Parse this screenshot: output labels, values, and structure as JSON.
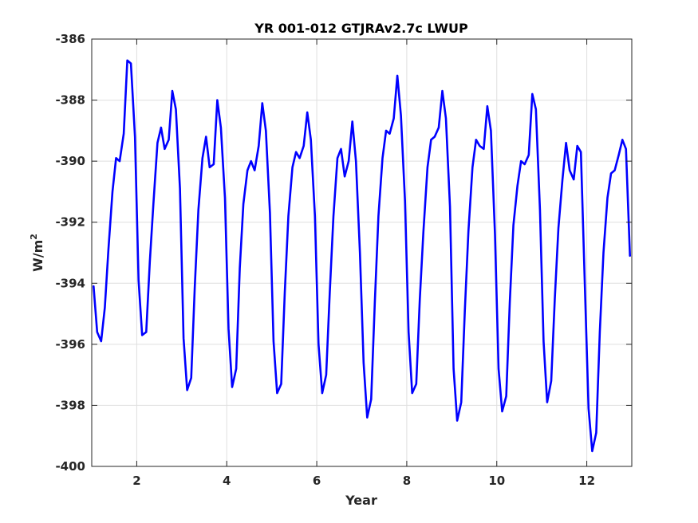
{
  "chart_data": {
    "type": "line",
    "title": "YR 001-012 GTJRAv2.7c LWUP",
    "xlabel": "Year",
    "ylabel": "W/m",
    "ylabel_superscript": "2",
    "xlim": [
      1,
      13
    ],
    "ylim": [
      -400,
      -386
    ],
    "xticks": [
      2,
      4,
      6,
      8,
      10,
      12
    ],
    "xtick_labels": [
      "2",
      "4",
      "6",
      "8",
      "10",
      "12"
    ],
    "yticks": [
      -400,
      -398,
      -396,
      -394,
      -392,
      -390,
      -388,
      -386
    ],
    "ytick_labels": [
      "-400",
      "-398",
      "-396",
      "-394",
      "-392",
      "-390",
      "-388",
      "-386"
    ],
    "grid": true,
    "series": [
      {
        "color": "#0000ff",
        "x": [
          1.04,
          1.12,
          1.21,
          1.29,
          1.37,
          1.46,
          1.54,
          1.62,
          1.71,
          1.79,
          1.87,
          1.96,
          2.04,
          2.12,
          2.21,
          2.29,
          2.37,
          2.46,
          2.54,
          2.62,
          2.71,
          2.79,
          2.87,
          2.96,
          3.04,
          3.12,
          3.21,
          3.29,
          3.37,
          3.46,
          3.54,
          3.62,
          3.71,
          3.79,
          3.87,
          3.96,
          4.04,
          4.12,
          4.21,
          4.29,
          4.37,
          4.46,
          4.54,
          4.62,
          4.71,
          4.79,
          4.87,
          4.96,
          5.04,
          5.12,
          5.21,
          5.29,
          5.37,
          5.46,
          5.54,
          5.62,
          5.71,
          5.79,
          5.87,
          5.96,
          6.04,
          6.12,
          6.21,
          6.29,
          6.37,
          6.46,
          6.54,
          6.62,
          6.71,
          6.79,
          6.87,
          6.96,
          7.04,
          7.12,
          7.21,
          7.29,
          7.37,
          7.46,
          7.54,
          7.62,
          7.71,
          7.79,
          7.87,
          7.96,
          8.04,
          8.12,
          8.21,
          8.29,
          8.37,
          8.46,
          8.54,
          8.62,
          8.71,
          8.79,
          8.87,
          8.96,
          9.04,
          9.12,
          9.21,
          9.29,
          9.37,
          9.46,
          9.54,
          9.62,
          9.71,
          9.79,
          9.87,
          9.96,
          10.04,
          10.12,
          10.21,
          10.29,
          10.37,
          10.46,
          10.54,
          10.62,
          10.71,
          10.79,
          10.87,
          10.96,
          11.04,
          11.12,
          11.21,
          11.29,
          11.37,
          11.46,
          11.54,
          11.62,
          11.71,
          11.79,
          11.87,
          11.96,
          12.04,
          12.12,
          12.21,
          12.29,
          12.37,
          12.46,
          12.54,
          12.62,
          12.71,
          12.79,
          12.87,
          12.96
        ],
        "y": [
          -394.1,
          -395.6,
          -395.9,
          -394.8,
          -392.9,
          -391.0,
          -389.9,
          -390.0,
          -389.1,
          -386.7,
          -386.8,
          -389.2,
          -393.9,
          -395.7,
          -395.6,
          -393.3,
          -391.4,
          -389.4,
          -388.9,
          -389.6,
          -389.3,
          -387.7,
          -388.3,
          -390.9,
          -395.8,
          -397.5,
          -397.1,
          -394.1,
          -391.6,
          -389.9,
          -389.2,
          -390.2,
          -390.1,
          -388.0,
          -388.9,
          -391.2,
          -395.5,
          -397.4,
          -396.8,
          -393.5,
          -391.4,
          -390.3,
          -390.0,
          -390.3,
          -389.5,
          -388.1,
          -389.0,
          -391.7,
          -395.9,
          -397.6,
          -397.3,
          -394.3,
          -391.8,
          -390.2,
          -389.7,
          -389.9,
          -389.5,
          -388.4,
          -389.3,
          -391.8,
          -396.0,
          -397.6,
          -397.0,
          -394.3,
          -391.8,
          -389.9,
          -389.6,
          -390.5,
          -390.0,
          -388.7,
          -390.0,
          -393.0,
          -396.6,
          -398.4,
          -397.8,
          -394.6,
          -391.8,
          -389.9,
          -389.0,
          -389.1,
          -388.6,
          -387.2,
          -388.5,
          -391.3,
          -395.6,
          -397.6,
          -397.3,
          -394.5,
          -392.3,
          -390.2,
          -389.3,
          -389.2,
          -388.9,
          -387.7,
          -388.6,
          -391.5,
          -396.8,
          -398.5,
          -397.9,
          -394.9,
          -392.3,
          -390.2,
          -389.3,
          -389.5,
          -389.6,
          -388.2,
          -389.0,
          -392.4,
          -396.8,
          -398.2,
          -397.7,
          -394.6,
          -392.1,
          -390.8,
          -390.0,
          -390.1,
          -389.8,
          -387.8,
          -388.3,
          -391.6,
          -395.9,
          -397.9,
          -397.2,
          -394.5,
          -392.2,
          -390.6,
          -389.4,
          -390.3,
          -390.6,
          -389.5,
          -389.7,
          -394.2,
          -398.1,
          -399.5,
          -398.9,
          -395.6,
          -393.0,
          -391.2,
          -390.4,
          -390.3,
          -389.8,
          -389.3,
          -389.6,
          -393.1
        ]
      }
    ]
  }
}
